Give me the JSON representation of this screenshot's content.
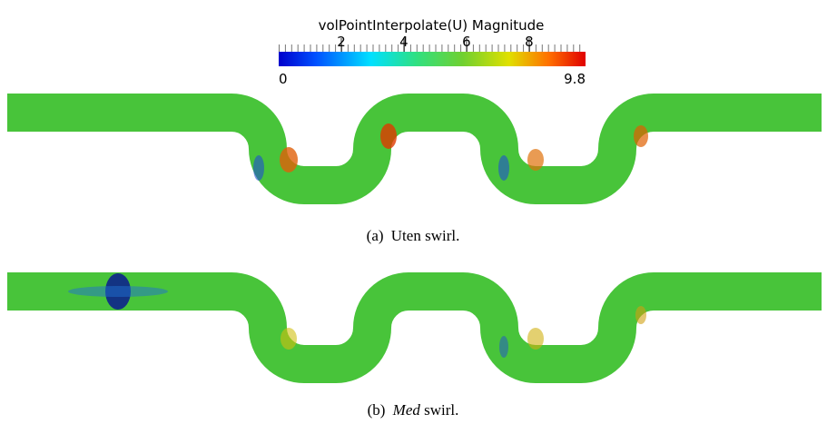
{
  "colorbar": {
    "title": "volPointInterpolate(U) Magnitude",
    "min": 0,
    "max": 9.8,
    "ticks": [
      2,
      4,
      6,
      8
    ]
  },
  "figures": [
    {
      "label": "(a)",
      "caption": "Uten swirl."
    },
    {
      "label": "(b)",
      "caption_emph": "Med",
      "caption": "swirl."
    }
  ]
}
